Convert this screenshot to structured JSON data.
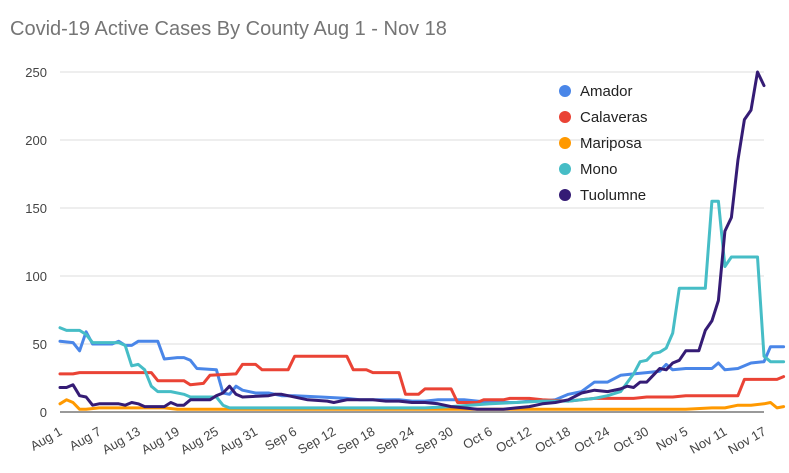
{
  "chart_data": {
    "type": "line",
    "title": "Covid-19 Active Cases By County Aug 1 - Nov 18",
    "xlabel": "",
    "ylabel": "",
    "ylim": [
      0,
      250
    ],
    "yticks": [
      0,
      50,
      100,
      150,
      200,
      250
    ],
    "x_tick_labels": [
      "Aug 1",
      "Aug 7",
      "Aug 13",
      "Aug 19",
      "Aug 25",
      "Aug 31",
      "Sep 6",
      "Sep 12",
      "Sep 18",
      "Sep 24",
      "Sep 30",
      "Oct 6",
      "Oct 12",
      "Oct 18",
      "Oct 24",
      "Oct 30",
      "Nov 5",
      "Nov 11",
      "Nov 17"
    ],
    "x_tick_every_days": 6,
    "grid": "horizontal",
    "legend_position": "top-right",
    "series": [
      {
        "name": "Amador",
        "color": "#4a86e8",
        "points": [
          [
            0,
            52
          ],
          [
            2,
            51
          ],
          [
            3,
            45
          ],
          [
            4,
            59
          ],
          [
            5,
            50
          ],
          [
            8,
            50
          ],
          [
            9,
            52
          ],
          [
            10,
            49
          ],
          [
            11,
            49
          ],
          [
            12,
            52
          ],
          [
            15,
            52
          ],
          [
            16,
            39
          ],
          [
            18,
            40
          ],
          [
            19,
            40
          ],
          [
            20,
            38
          ],
          [
            21,
            32
          ],
          [
            24,
            31
          ],
          [
            25,
            14
          ],
          [
            26,
            13
          ],
          [
            27,
            19
          ],
          [
            28,
            16
          ],
          [
            30,
            14
          ],
          [
            32,
            14
          ],
          [
            34,
            12
          ],
          [
            36,
            12
          ],
          [
            40,
            11
          ],
          [
            44,
            10
          ],
          [
            46,
            9
          ],
          [
            50,
            9
          ],
          [
            52,
            9
          ],
          [
            54,
            8
          ],
          [
            56,
            8
          ],
          [
            58,
            9
          ],
          [
            60,
            9
          ],
          [
            62,
            9
          ],
          [
            64,
            8
          ],
          [
            66,
            7
          ],
          [
            68,
            7
          ],
          [
            70,
            7
          ],
          [
            72,
            8
          ],
          [
            74,
            8
          ],
          [
            76,
            9
          ],
          [
            78,
            13
          ],
          [
            80,
            15
          ],
          [
            82,
            22
          ],
          [
            84,
            22
          ],
          [
            86,
            27
          ],
          [
            88,
            28
          ],
          [
            90,
            29
          ],
          [
            92,
            30
          ],
          [
            93,
            35
          ],
          [
            94,
            31
          ],
          [
            96,
            32
          ],
          [
            98,
            32
          ],
          [
            100,
            32
          ],
          [
            101,
            36
          ],
          [
            102,
            31
          ],
          [
            104,
            32
          ],
          [
            106,
            36
          ],
          [
            108,
            37
          ],
          [
            109,
            48
          ],
          [
            111,
            48
          ]
        ]
      },
      {
        "name": "Calaveras",
        "color": "#ea4335",
        "points": [
          [
            0,
            28
          ],
          [
            2,
            28
          ],
          [
            3,
            29
          ],
          [
            14,
            29
          ],
          [
            15,
            23
          ],
          [
            19,
            23
          ],
          [
            20,
            20
          ],
          [
            22,
            21
          ],
          [
            23,
            27
          ],
          [
            27,
            28
          ],
          [
            28,
            35
          ],
          [
            30,
            35
          ],
          [
            31,
            31
          ],
          [
            35,
            31
          ],
          [
            36,
            41
          ],
          [
            44,
            41
          ],
          [
            45,
            31
          ],
          [
            47,
            31
          ],
          [
            48,
            29
          ],
          [
            52,
            29
          ],
          [
            53,
            13
          ],
          [
            55,
            13
          ],
          [
            56,
            17
          ],
          [
            60,
            17
          ],
          [
            61,
            7
          ],
          [
            64,
            7
          ],
          [
            65,
            9
          ],
          [
            68,
            9
          ],
          [
            69,
            10
          ],
          [
            72,
            10
          ],
          [
            74,
            9
          ],
          [
            78,
            8
          ],
          [
            80,
            9
          ],
          [
            82,
            10
          ],
          [
            84,
            10
          ],
          [
            86,
            10
          ],
          [
            88,
            10
          ],
          [
            90,
            11
          ],
          [
            92,
            11
          ],
          [
            94,
            11
          ],
          [
            96,
            12
          ],
          [
            98,
            12
          ],
          [
            100,
            12
          ],
          [
            102,
            12
          ],
          [
            104,
            12
          ],
          [
            105,
            24
          ],
          [
            108,
            24
          ],
          [
            110,
            24
          ],
          [
            111,
            26
          ]
        ]
      },
      {
        "name": "Mariposa",
        "color": "#ff9900",
        "points": [
          [
            0,
            6
          ],
          [
            1,
            9
          ],
          [
            2,
            7
          ],
          [
            3,
            2
          ],
          [
            4,
            2
          ],
          [
            6,
            3
          ],
          [
            10,
            3
          ],
          [
            12,
            3
          ],
          [
            16,
            3
          ],
          [
            18,
            2
          ],
          [
            22,
            2
          ],
          [
            30,
            2
          ],
          [
            40,
            2
          ],
          [
            50,
            2
          ],
          [
            60,
            2
          ],
          [
            70,
            2
          ],
          [
            80,
            2
          ],
          [
            84,
            2
          ],
          [
            88,
            2
          ],
          [
            92,
            2
          ],
          [
            96,
            2
          ],
          [
            100,
            3
          ],
          [
            102,
            3
          ],
          [
            104,
            5
          ],
          [
            106,
            5
          ],
          [
            108,
            6
          ],
          [
            109,
            7
          ],
          [
            110,
            3
          ],
          [
            111,
            4
          ]
        ]
      },
      {
        "name": "Mono",
        "color": "#46bdc6",
        "points": [
          [
            0,
            62
          ],
          [
            1,
            60
          ],
          [
            3,
            60
          ],
          [
            4,
            57
          ],
          [
            5,
            51
          ],
          [
            7,
            51
          ],
          [
            9,
            51
          ],
          [
            10,
            49
          ],
          [
            11,
            34
          ],
          [
            12,
            35
          ],
          [
            13,
            31
          ],
          [
            14,
            19
          ],
          [
            15,
            15
          ],
          [
            17,
            15
          ],
          [
            19,
            13
          ],
          [
            20,
            11
          ],
          [
            23,
            11
          ],
          [
            24,
            11
          ],
          [
            25,
            5
          ],
          [
            26,
            3
          ],
          [
            30,
            3
          ],
          [
            40,
            3
          ],
          [
            50,
            3
          ],
          [
            56,
            3
          ],
          [
            60,
            4
          ],
          [
            66,
            6
          ],
          [
            70,
            7
          ],
          [
            74,
            8
          ],
          [
            78,
            8
          ],
          [
            82,
            10
          ],
          [
            84,
            12
          ],
          [
            86,
            15
          ],
          [
            88,
            28
          ],
          [
            89,
            37
          ],
          [
            90,
            38
          ],
          [
            91,
            43
          ],
          [
            92,
            44
          ],
          [
            93,
            47
          ],
          [
            94,
            58
          ],
          [
            95,
            91
          ],
          [
            97,
            91
          ],
          [
            99,
            91
          ],
          [
            100,
            155
          ],
          [
            101,
            155
          ],
          [
            102,
            107
          ],
          [
            103,
            114
          ],
          [
            104,
            114
          ],
          [
            107,
            114
          ],
          [
            108,
            41
          ],
          [
            109,
            37
          ],
          [
            110,
            37
          ],
          [
            111,
            37
          ]
        ]
      },
      {
        "name": "Tuolumne",
        "color": "#351c75",
        "points": [
          [
            0,
            18
          ],
          [
            1,
            18
          ],
          [
            2,
            20
          ],
          [
            3,
            12
          ],
          [
            4,
            11
          ],
          [
            5,
            5
          ],
          [
            6,
            6
          ],
          [
            9,
            6
          ],
          [
            10,
            5
          ],
          [
            11,
            7
          ],
          [
            12,
            6
          ],
          [
            13,
            4
          ],
          [
            16,
            4
          ],
          [
            17,
            7
          ],
          [
            18,
            5
          ],
          [
            19,
            5
          ],
          [
            20,
            9
          ],
          [
            23,
            9
          ],
          [
            24,
            12
          ],
          [
            25,
            14
          ],
          [
            26,
            19
          ],
          [
            27,
            13
          ],
          [
            28,
            11
          ],
          [
            32,
            12
          ],
          [
            33,
            13
          ],
          [
            34,
            13
          ],
          [
            35,
            12
          ],
          [
            38,
            9
          ],
          [
            41,
            8
          ],
          [
            42,
            7
          ],
          [
            44,
            9
          ],
          [
            46,
            9
          ],
          [
            48,
            9
          ],
          [
            50,
            8
          ],
          [
            52,
            8
          ],
          [
            54,
            7
          ],
          [
            56,
            7
          ],
          [
            58,
            6
          ],
          [
            60,
            4
          ],
          [
            62,
            3
          ],
          [
            64,
            2
          ],
          [
            66,
            2
          ],
          [
            68,
            2
          ],
          [
            70,
            3
          ],
          [
            72,
            4
          ],
          [
            74,
            6
          ],
          [
            76,
            7
          ],
          [
            78,
            9
          ],
          [
            80,
            14
          ],
          [
            82,
            16
          ],
          [
            84,
            15
          ],
          [
            86,
            17
          ],
          [
            87,
            19
          ],
          [
            88,
            18
          ],
          [
            89,
            22
          ],
          [
            90,
            22
          ],
          [
            91,
            27
          ],
          [
            92,
            32
          ],
          [
            93,
            31
          ],
          [
            94,
            36
          ],
          [
            95,
            38
          ],
          [
            96,
            45
          ],
          [
            98,
            45
          ],
          [
            99,
            60
          ],
          [
            100,
            67
          ],
          [
            101,
            82
          ],
          [
            102,
            133
          ],
          [
            103,
            143
          ],
          [
            104,
            185
          ],
          [
            105,
            215
          ],
          [
            106,
            222
          ],
          [
            107,
            250
          ],
          [
            108,
            240
          ]
        ]
      }
    ]
  }
}
